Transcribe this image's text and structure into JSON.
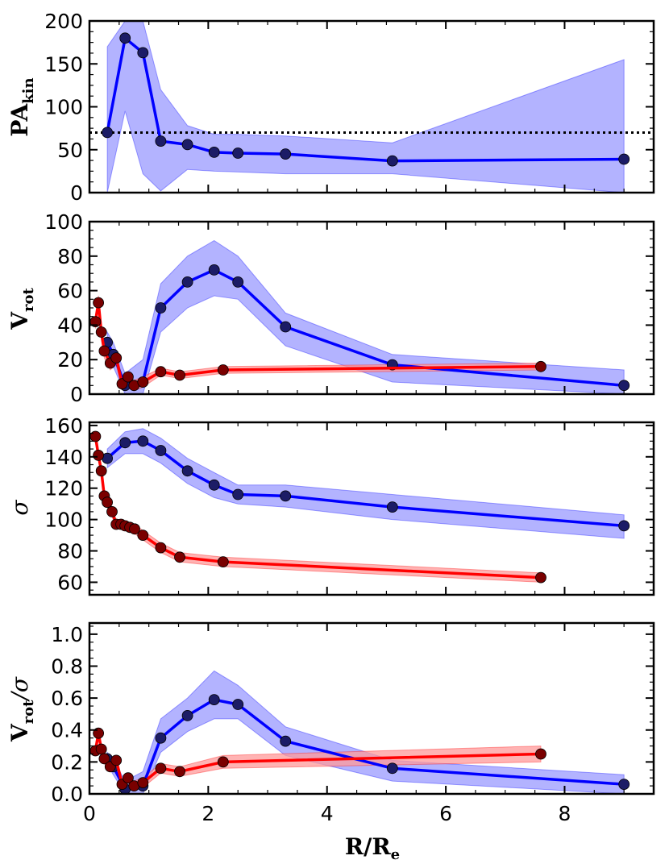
{
  "chart_data": [
    {
      "type": "line",
      "ylabel": "PA",
      "ylabel_sub": "kin",
      "ylim": [
        0,
        200
      ],
      "xlim": [
        0,
        9.5
      ],
      "yticks": [
        0,
        50,
        100,
        150,
        200
      ],
      "reference_line": {
        "y": 70,
        "style": "dotted",
        "color": "#000000"
      },
      "series": [
        {
          "color": "#0000ff",
          "marker_color": "#1c1c66",
          "band_color": "#9999ff",
          "x": [
            0.3,
            0.6,
            0.9,
            1.2,
            1.65,
            2.1,
            2.5,
            3.3,
            5.1,
            9.0
          ],
          "y": [
            70,
            180,
            163,
            60,
            56,
            47,
            46,
            45,
            37,
            39
          ],
          "lower": [
            0,
            95,
            22,
            2,
            27,
            25,
            24,
            22,
            22,
            0
          ],
          "upper": [
            170,
            200,
            200,
            120,
            78,
            68,
            68,
            66,
            58,
            155
          ]
        }
      ]
    },
    {
      "type": "line",
      "ylabel": "V",
      "ylabel_sub": "rot",
      "ylim": [
        0,
        100
      ],
      "xlim": [
        0,
        9.5
      ],
      "yticks": [
        0,
        20,
        40,
        60,
        80,
        100
      ],
      "series": [
        {
          "color": "#0000ff",
          "marker_color": "#1c1c66",
          "band_color": "#9999ff",
          "x": [
            0.3,
            0.4,
            0.6,
            0.9,
            1.2,
            1.65,
            2.1,
            2.5,
            3.3,
            5.1,
            9.0
          ],
          "y": [
            30,
            23,
            5,
            7,
            50,
            65,
            72,
            65,
            39,
            17,
            5
          ],
          "lower": [
            24,
            16,
            0,
            0,
            36,
            50,
            57,
            55,
            28,
            7,
            0
          ],
          "upper": [
            36,
            30,
            12,
            20,
            64,
            80,
            89,
            80,
            47,
            23,
            14
          ]
        },
        {
          "color": "#ff0000",
          "marker_color": "#7a0000",
          "band_color": "#ff9999",
          "x": [
            0.1,
            0.15,
            0.2,
            0.25,
            0.35,
            0.45,
            0.55,
            0.65,
            0.75,
            0.9,
            1.2,
            1.52,
            2.25,
            7.6
          ],
          "y": [
            42,
            53,
            36,
            25,
            18,
            21,
            6,
            10,
            5,
            7,
            13,
            11,
            14,
            16
          ],
          "lower": [
            38,
            49,
            32,
            21,
            14,
            17,
            3,
            7,
            2,
            4,
            11,
            9,
            12,
            14
          ],
          "upper": [
            46,
            57,
            40,
            29,
            22,
            25,
            9,
            13,
            8,
            10,
            15,
            13,
            16,
            18
          ]
        }
      ]
    },
    {
      "type": "line",
      "ylabel": "σ",
      "ylabel_sub": "",
      "ylim": [
        52,
        162
      ],
      "xlim": [
        0,
        9.5
      ],
      "yticks": [
        60,
        80,
        100,
        120,
        140,
        160
      ],
      "series": [
        {
          "color": "#0000ff",
          "marker_color": "#1c1c66",
          "band_color": "#9999ff",
          "x": [
            0.3,
            0.6,
            0.9,
            1.2,
            1.65,
            2.1,
            2.5,
            3.3,
            5.1,
            9.0
          ],
          "y": [
            139,
            149,
            150,
            144,
            131,
            122,
            116,
            115,
            108,
            96
          ],
          "lower": [
            133,
            142,
            142,
            136,
            123,
            114,
            110,
            108,
            100,
            88
          ],
          "upper": [
            145,
            156,
            158,
            152,
            139,
            130,
            122,
            122,
            116,
            103
          ]
        },
        {
          "color": "#ff0000",
          "marker_color": "#7a0000",
          "band_color": "#ff9999",
          "x": [
            0.1,
            0.15,
            0.2,
            0.25,
            0.3,
            0.38,
            0.45,
            0.53,
            0.6,
            0.68,
            0.76,
            0.9,
            1.2,
            1.52,
            2.25,
            7.6
          ],
          "y": [
            153,
            141,
            131,
            115,
            111,
            105,
            97,
            97,
            96,
            95,
            94,
            90,
            82,
            76,
            73,
            63
          ],
          "lower": [
            150,
            138,
            128,
            112,
            108,
            102,
            94,
            94,
            93,
            92,
            91,
            87,
            79,
            73,
            70,
            60
          ],
          "upper": [
            156,
            144,
            134,
            118,
            114,
            108,
            100,
            100,
            99,
            98,
            97,
            93,
            85,
            79,
            76,
            66
          ]
        }
      ]
    },
    {
      "type": "line",
      "ylabel": "V",
      "ylabel_sub": "rot",
      "ylabel_suffix": "/σ",
      "xlabel": "R/R",
      "xlabel_sub": "e",
      "ylim": [
        0,
        1.07
      ],
      "xlim": [
        0,
        9.5
      ],
      "yticks": [
        0.0,
        0.2,
        0.4,
        0.6,
        0.8,
        1.0
      ],
      "xticks": [
        0,
        2,
        4,
        6,
        8
      ],
      "series": [
        {
          "color": "#0000ff",
          "marker_color": "#1c1c66",
          "band_color": "#9999ff",
          "x": [
            0.3,
            0.4,
            0.6,
            0.9,
            1.2,
            1.65,
            2.1,
            2.5,
            3.3,
            5.1,
            9.0
          ],
          "y": [
            0.22,
            0.17,
            0.03,
            0.05,
            0.35,
            0.49,
            0.59,
            0.56,
            0.33,
            0.16,
            0.06
          ],
          "lower": [
            0.18,
            0.12,
            0.0,
            0.0,
            0.26,
            0.39,
            0.47,
            0.47,
            0.24,
            0.08,
            0.0
          ],
          "upper": [
            0.26,
            0.22,
            0.08,
            0.14,
            0.47,
            0.6,
            0.77,
            0.68,
            0.42,
            0.21,
            0.12
          ]
        },
        {
          "color": "#ff0000",
          "marker_color": "#7a0000",
          "band_color": "#ff9999",
          "x": [
            0.1,
            0.15,
            0.2,
            0.25,
            0.35,
            0.45,
            0.55,
            0.65,
            0.75,
            0.9,
            1.2,
            1.52,
            2.25,
            7.6
          ],
          "y": [
            0.27,
            0.38,
            0.28,
            0.22,
            0.17,
            0.21,
            0.06,
            0.1,
            0.05,
            0.07,
            0.16,
            0.14,
            0.2,
            0.25
          ],
          "lower": [
            0.24,
            0.35,
            0.25,
            0.19,
            0.14,
            0.18,
            0.03,
            0.07,
            0.02,
            0.04,
            0.13,
            0.11,
            0.16,
            0.2
          ],
          "upper": [
            0.3,
            0.41,
            0.31,
            0.25,
            0.2,
            0.24,
            0.09,
            0.13,
            0.08,
            0.1,
            0.19,
            0.17,
            0.24,
            0.3
          ]
        }
      ]
    }
  ]
}
